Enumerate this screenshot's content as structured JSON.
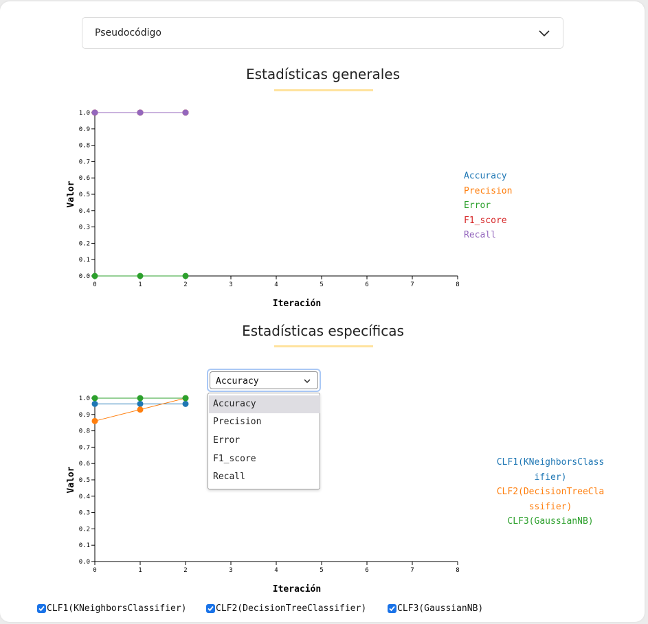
{
  "accordion": {
    "title": "Pseudocódigo",
    "icon": "chevron-down-icon"
  },
  "general": {
    "title": "Estadísticas generales",
    "accent_color": "#ffe39e",
    "chart_data": {
      "type": "line",
      "xlabel": "Iteración",
      "ylabel": "Valor",
      "xlim": [
        0,
        8
      ],
      "ylim": [
        0,
        1
      ],
      "xticks": [
        "0",
        "1",
        "2",
        "3",
        "4",
        "5",
        "6",
        "7",
        "8"
      ],
      "yticks": [
        "0.0",
        "0.1",
        "0.2",
        "0.3",
        "0.4",
        "0.5",
        "0.6",
        "0.7",
        "0.8",
        "0.9",
        "1.0"
      ],
      "grid": false,
      "legend_position": "right",
      "x": [
        0,
        1,
        2
      ],
      "series": [
        {
          "name": "Accuracy",
          "color": "#1f77b4",
          "values": [
            1.0,
            1.0,
            1.0
          ]
        },
        {
          "name": "Precision",
          "color": "#ff7f0e",
          "values": [
            1.0,
            1.0,
            1.0
          ]
        },
        {
          "name": "Error",
          "color": "#2ca02c",
          "values": [
            0.0,
            0.0,
            0.0
          ]
        },
        {
          "name": "F1_score",
          "color": "#d62728",
          "values": [
            1.0,
            1.0,
            1.0
          ]
        },
        {
          "name": "Recall",
          "color": "#9467bd",
          "values": [
            1.0,
            1.0,
            1.0
          ]
        }
      ]
    }
  },
  "specific": {
    "title": "Estadísticas específicas",
    "metric_select": {
      "value": "Accuracy",
      "options": [
        "Accuracy",
        "Precision",
        "Error",
        "F1_score",
        "Recall"
      ]
    },
    "legend": [
      {
        "lines": [
          "CLF1(KNeighborsClass",
          "ifier)"
        ],
        "color": "#1f77b4"
      },
      {
        "lines": [
          "CLF2(DecisionTreeCla",
          "ssifier)"
        ],
        "color": "#ff7f0e"
      },
      {
        "lines": [
          "CLF3(GaussianNB)"
        ],
        "color": "#2ca02c"
      }
    ],
    "chart_data": {
      "type": "line",
      "xlabel": "Iteración",
      "ylabel": "Valor",
      "xlim": [
        0,
        8
      ],
      "ylim": [
        0,
        1
      ],
      "xticks": [
        "0",
        "1",
        "2",
        "3",
        "4",
        "5",
        "6",
        "7",
        "8"
      ],
      "yticks": [
        "0.0",
        "0.1",
        "0.2",
        "0.3",
        "0.4",
        "0.5",
        "0.6",
        "0.7",
        "0.8",
        "0.9",
        "1.0"
      ],
      "grid": false,
      "legend_position": "right",
      "x": [
        0,
        1,
        2
      ],
      "series": [
        {
          "name": "CLF1(KNeighborsClassifier)",
          "color": "#1f77b4",
          "values": [
            0.965,
            0.965,
            0.965
          ]
        },
        {
          "name": "CLF2(DecisionTreeClassifier)",
          "color": "#ff7f0e",
          "values": [
            0.86,
            0.93,
            1.0
          ]
        },
        {
          "name": "CLF3(GaussianNB)",
          "color": "#2ca02c",
          "values": [
            1.0,
            1.0,
            1.0
          ]
        }
      ]
    },
    "checkboxes": [
      {
        "label": "CLF1(KNeighborsClassifier)",
        "checked": true
      },
      {
        "label": "CLF2(DecisionTreeClassifier)",
        "checked": true
      },
      {
        "label": "CLF3(GaussianNB)",
        "checked": true
      }
    ],
    "checkbox_color": "#1a73e8"
  }
}
